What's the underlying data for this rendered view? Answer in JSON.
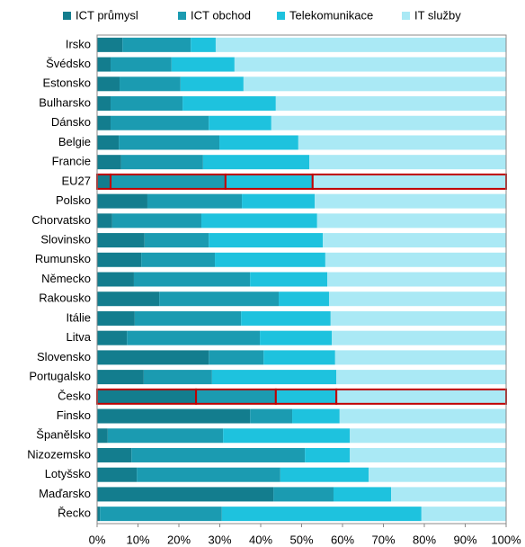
{
  "chart_data": {
    "type": "stacked_barh",
    "categories": [
      "Irsko",
      "Švédsko",
      "Estonsko",
      "Bulharsko",
      "Dánsko",
      "Belgie",
      "Francie",
      "EU27",
      "Polsko",
      "Chorvatsko",
      "Slovinsko",
      "Rumunsko",
      "Německo",
      "Rakousko",
      "Itálie",
      "Litva",
      "Slovensko",
      "Portugalsko",
      "Česko",
      "Finsko",
      "Španělsko",
      "Nizozemsko",
      "Lotyšsko",
      "Maďarsko",
      "Řecko"
    ],
    "series": [
      {
        "name": "ICT průmysl",
        "color": "#137d8e",
        "values": [
          6.2,
          3.3,
          5.5,
          3.3,
          3.3,
          5.3,
          5.9,
          3.3,
          12.3,
          3.7,
          11.6,
          10.8,
          9.0,
          15.2,
          9.2,
          7.3,
          27.3,
          11.4,
          24.2,
          37.4,
          2.6,
          8.4,
          9.7,
          43.1,
          0.7
        ]
      },
      {
        "name": "ICT obchod",
        "color": "#1b9bb1",
        "values": [
          16.7,
          14.9,
          14.9,
          17.6,
          24.0,
          24.6,
          20.0,
          28.1,
          23.1,
          21.8,
          15.7,
          18.0,
          28.4,
          29.2,
          26.0,
          32.5,
          13.4,
          16.7,
          19.5,
          10.3,
          28.2,
          42.4,
          35.1,
          14.7,
          29.8
        ]
      },
      {
        "name": "Telekomunikace",
        "color": "#1ec2de",
        "values": [
          6.1,
          15.4,
          15.4,
          22.8,
          15.3,
          19.3,
          26.0,
          21.3,
          17.8,
          28.3,
          27.9,
          27.0,
          18.9,
          12.3,
          21.9,
          17.6,
          17.5,
          30.4,
          14.8,
          11.6,
          31.0,
          11.0,
          21.6,
          14.1,
          48.8
        ]
      },
      {
        "name": "IT služby",
        "color": "#aae9f5",
        "values": [
          71.0,
          66.4,
          64.2,
          56.3,
          57.4,
          50.8,
          48.1,
          47.3,
          46.8,
          46.2,
          44.8,
          44.2,
          43.7,
          43.3,
          42.9,
          42.6,
          41.8,
          41.5,
          41.5,
          40.7,
          38.2,
          38.2,
          33.6,
          28.1,
          20.7
        ]
      }
    ],
    "highlight": [
      "EU27",
      "Česko"
    ],
    "highlight_color": "#c00000",
    "xlim": [
      0,
      100
    ],
    "xticks": [
      {
        "value": 0,
        "label": "0%"
      },
      {
        "value": 10,
        "label": "10%"
      },
      {
        "value": 20,
        "label": "20%"
      },
      {
        "value": 30,
        "label": "30%"
      },
      {
        "value": 40,
        "label": "40%"
      },
      {
        "value": 50,
        "label": "50%"
      },
      {
        "value": 60,
        "label": "60%"
      },
      {
        "value": 70,
        "label": "70%"
      },
      {
        "value": 80,
        "label": "80%"
      },
      {
        "value": 90,
        "label": "90%"
      },
      {
        "value": 100,
        "label": "100%"
      }
    ],
    "legend": "top"
  }
}
